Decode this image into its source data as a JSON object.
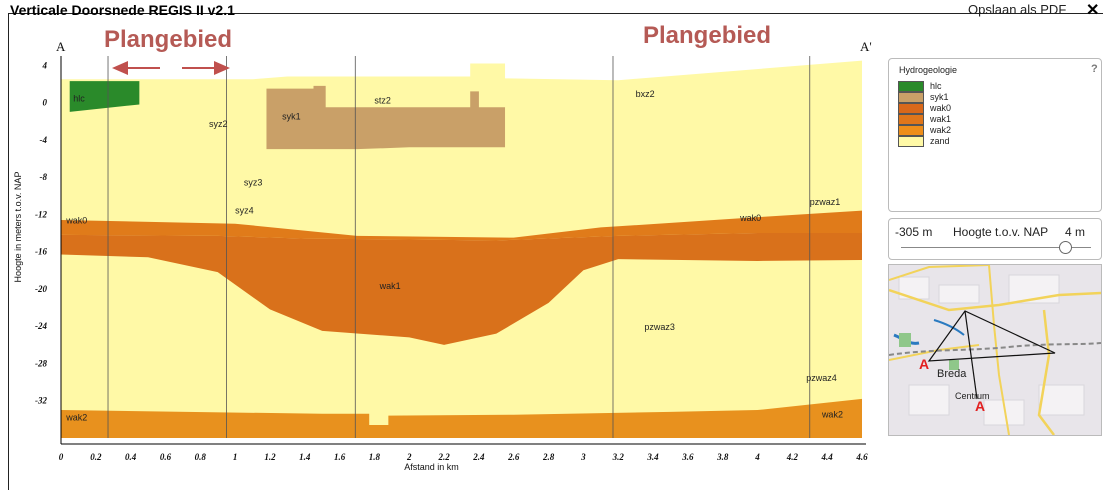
{
  "window": {
    "title": "Verticale Doorsnede REGIS II v2.1",
    "pdf_label": "Opslaan als PDF",
    "close_glyph": "✕"
  },
  "annotations": {
    "left": "Plangebied",
    "right": "Plangebied"
  },
  "section": {
    "start_label": "A",
    "end_label": "A'"
  },
  "chart_data": {
    "type": "cross-section",
    "title": "",
    "xlabel": "Afstand in km",
    "ylabel": "Hoogte in meters t.o.v. NAP",
    "xlim": [
      0,
      4.6
    ],
    "ylim": [
      -36,
      5
    ],
    "x_ticks": [
      "0",
      "0.2",
      "0.4",
      "0.6",
      "0.8",
      "1",
      "1.2",
      "1.4",
      "1.6",
      "1.8",
      "2",
      "2.2",
      "2.4",
      "2.6",
      "2.8",
      "3",
      "3.2",
      "3.4",
      "3.6",
      "3.8",
      "4",
      "4.2",
      "4.4",
      "4.6"
    ],
    "y_ticks": [
      "4",
      "0",
      "-4",
      "-8",
      "-12",
      "-16",
      "-20",
      "-24",
      "-28",
      "-32"
    ],
    "vertical_lines_km": [
      0.27,
      0.95,
      1.69,
      3.17,
      4.3
    ],
    "layers": [
      {
        "name": "zand",
        "color": "#fff9a6",
        "top": [
          [
            0,
            2.5
          ],
          [
            1.1,
            2.5
          ],
          [
            1.3,
            2.8
          ],
          [
            2.35,
            2.8
          ],
          [
            2.35,
            4.2
          ],
          [
            2.55,
            4.2
          ],
          [
            2.55,
            2.6
          ],
          [
            3.2,
            2.4
          ],
          [
            4.6,
            4.5
          ]
        ],
        "bottom": [
          [
            0,
            -36
          ],
          [
            4.6,
            -36
          ]
        ]
      },
      {
        "name": "wak0",
        "color": "#e07b1a",
        "top": [
          [
            0,
            -12.6
          ],
          [
            1.0,
            -13.0
          ],
          [
            1.7,
            -14.3
          ],
          [
            2.6,
            -14.5
          ],
          [
            3.1,
            -13.4
          ],
          [
            4.0,
            -12.3
          ],
          [
            4.6,
            -11.6
          ]
        ],
        "bottom": [
          [
            0,
            -14.2
          ],
          [
            0.9,
            -14.3
          ],
          [
            1.4,
            -14.6
          ],
          [
            2.0,
            -14.7
          ],
          [
            2.5,
            -14.8
          ],
          [
            3.2,
            -14.3
          ],
          [
            4.0,
            -14.0
          ],
          [
            4.6,
            -14.0
          ]
        ]
      },
      {
        "name": "wak1",
        "color": "#d9711b",
        "top": [
          [
            0,
            -14.2
          ],
          [
            0.9,
            -14.3
          ],
          [
            1.4,
            -14.6
          ],
          [
            2.0,
            -14.7
          ],
          [
            2.5,
            -14.8
          ],
          [
            3.2,
            -14.3
          ],
          [
            4.0,
            -14.0
          ],
          [
            4.6,
            -14.0
          ]
        ],
        "bottom": [
          [
            0,
            -16.3
          ],
          [
            0.5,
            -16.6
          ],
          [
            0.9,
            -18.2
          ],
          [
            1.2,
            -22.2
          ],
          [
            1.5,
            -24.5
          ],
          [
            2.0,
            -25.2
          ],
          [
            2.2,
            -26.0
          ],
          [
            2.5,
            -24.8
          ],
          [
            2.8,
            -21.5
          ],
          [
            3.0,
            -18.0
          ],
          [
            3.2,
            -16.8
          ],
          [
            4.0,
            -17.0
          ],
          [
            4.6,
            -16.9
          ]
        ]
      },
      {
        "name": "wak2",
        "color": "#e8911e",
        "top": [
          [
            0,
            -33.0
          ],
          [
            1.5,
            -33.4
          ],
          [
            1.77,
            -33.4
          ],
          [
            1.77,
            -34.6
          ],
          [
            1.88,
            -34.6
          ],
          [
            1.88,
            -33.6
          ],
          [
            2.6,
            -33.5
          ],
          [
            3.5,
            -33.2
          ],
          [
            4.0,
            -33.0
          ],
          [
            4.4,
            -32.2
          ],
          [
            4.6,
            -31.8
          ]
        ],
        "bottom": [
          [
            0,
            -36
          ],
          [
            4.6,
            -36
          ]
        ]
      },
      {
        "name": "syk1",
        "color": "#c9a068",
        "top": [
          [
            1.18,
            1.5
          ],
          [
            1.45,
            1.5
          ],
          [
            1.45,
            1.8
          ],
          [
            1.52,
            1.8
          ],
          [
            1.52,
            -0.5
          ],
          [
            2.35,
            -0.5
          ],
          [
            2.35,
            1.2
          ],
          [
            2.4,
            1.2
          ],
          [
            2.4,
            -0.5
          ],
          [
            2.55,
            -0.5
          ]
        ],
        "bottom": [
          [
            1.18,
            -5.0
          ],
          [
            1.7,
            -5.0
          ],
          [
            2.0,
            -4.8
          ],
          [
            2.55,
            -4.8
          ]
        ]
      },
      {
        "name": "hlc",
        "color": "#2a8a2a",
        "top": [
          [
            0.05,
            2.3
          ],
          [
            0.45,
            2.3
          ]
        ],
        "bottom": [
          [
            0.05,
            -1.0
          ],
          [
            0.45,
            -0.2
          ]
        ]
      }
    ],
    "labels": [
      {
        "text": "hlc",
        "x": 0.07,
        "y": 0.1
      },
      {
        "text": "syz2",
        "x": 0.85,
        "y": -2.6
      },
      {
        "text": "syk1",
        "x": 1.27,
        "y": -1.8
      },
      {
        "text": "stz2",
        "x": 1.8,
        "y": -0.1
      },
      {
        "text": "bxz2",
        "x": 3.3,
        "y": 0.6
      },
      {
        "text": "syz3",
        "x": 1.05,
        "y": -8.9
      },
      {
        "text": "syz4",
        "x": 1.0,
        "y": -11.9
      },
      {
        "text": "wak0",
        "x": 0.03,
        "y": -13.0
      },
      {
        "text": "wak0",
        "x": 3.9,
        "y": -12.7
      },
      {
        "text": "pzwaz1",
        "x": 4.3,
        "y": -11.0
      },
      {
        "text": "wak1",
        "x": 1.83,
        "y": -20.0
      },
      {
        "text": "pzwaz3",
        "x": 3.35,
        "y": -24.4
      },
      {
        "text": "pzwaz4",
        "x": 4.28,
        "y": -29.9
      },
      {
        "text": "wak2",
        "x": 0.03,
        "y": -34.1
      },
      {
        "text": "wak2",
        "x": 4.37,
        "y": -33.8
      }
    ]
  },
  "legend": {
    "title": "Hydrogeologie",
    "help": "?",
    "items": [
      {
        "label": "hlc",
        "color": "#2a8a2a"
      },
      {
        "label": "syk1",
        "color": "#c9a068"
      },
      {
        "label": "wak0",
        "color": "#d9681a"
      },
      {
        "label": "wak1",
        "color": "#e0761a"
      },
      {
        "label": "wak2",
        "color": "#ee8e1a"
      },
      {
        "label": "zand",
        "color": "#fff9a6"
      }
    ]
  },
  "height_slider": {
    "min_label": "-305 m",
    "label": "Hoogte t.o.v. NAP",
    "max_label": "4 m",
    "value_m": 0
  },
  "overview_map": {
    "city": "Breda",
    "district": "Centrum",
    "marker": "A"
  }
}
